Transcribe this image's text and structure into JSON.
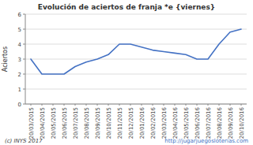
{
  "chart_data": {
    "type": "line",
    "title": "Evolución de aciertos de franja *e {viernes}",
    "y_label": "Aciertos",
    "categories": [
      "20/03/2015",
      "20/04/2015",
      "20/05/2015",
      "20/06/2015",
      "20/07/2015",
      "20/08/2015",
      "20/09/2015",
      "20/10/2015",
      "20/11/2015",
      "20/12/2015",
      "20/01/2016",
      "20/02/2016",
      "20/03/2016",
      "20/04/2016",
      "20/05/2016",
      "20/06/2016",
      "20/07/2016",
      "20/08/2016",
      "20/09/2016",
      "20/10/2016"
    ],
    "values": [
      3,
      2,
      2,
      2,
      2.5,
      2.8,
      3,
      3.3,
      4,
      4,
      3.8,
      3.6,
      3.5,
      3.4,
      3.3,
      3,
      3,
      4,
      4.8,
      5
    ],
    "color": "#4472C4",
    "ylim": [
      0,
      6
    ],
    "yticks": [
      0,
      1,
      2,
      3,
      4,
      5,
      6
    ],
    "grid": true,
    "annotations": [
      "(c) INYS 2017",
      "http://jugarjuegosloterias.com"
    ]
  }
}
